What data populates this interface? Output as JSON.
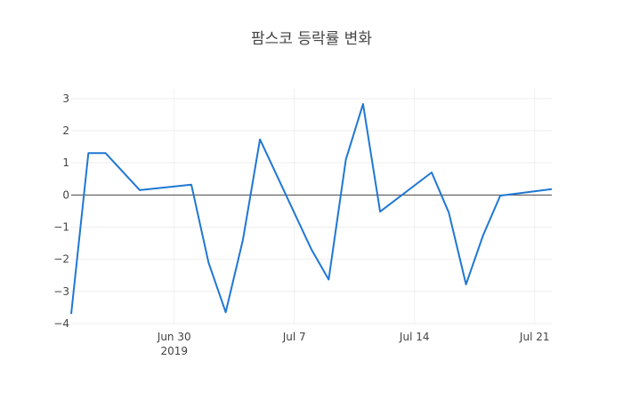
{
  "chart_data": {
    "type": "line",
    "title": "팜스코 등락률 변화",
    "xlabel": "",
    "ylabel": "",
    "x_range": [
      "2019-06-24",
      "2019-07-22"
    ],
    "ylim": [
      -4,
      3.3
    ],
    "grid": true,
    "legend": "none",
    "x_ticks": [
      {
        "date": "2019-06-30",
        "label": "Jun 30",
        "sublabel": "2019"
      },
      {
        "date": "2019-07-07",
        "label": "Jul 7",
        "sublabel": ""
      },
      {
        "date": "2019-07-14",
        "label": "Jul 14",
        "sublabel": ""
      },
      {
        "date": "2019-07-21",
        "label": "Jul 21",
        "sublabel": ""
      }
    ],
    "y_ticks": [
      {
        "value": 3,
        "label": "3"
      },
      {
        "value": 2,
        "label": "2"
      },
      {
        "value": 1,
        "label": "1"
      },
      {
        "value": 0,
        "label": "0"
      },
      {
        "value": -1,
        "label": "−1"
      },
      {
        "value": -2,
        "label": "−2"
      },
      {
        "value": -3,
        "label": "−3"
      },
      {
        "value": -4,
        "label": "−4"
      }
    ],
    "series": [
      {
        "color": "#1f77d4",
        "x": [
          "2019-06-24",
          "2019-06-25",
          "2019-06-26",
          "2019-06-28",
          "2019-07-01",
          "2019-07-02",
          "2019-07-03",
          "2019-07-04",
          "2019-07-05",
          "2019-07-08",
          "2019-07-09",
          "2019-07-10",
          "2019-07-11",
          "2019-07-12",
          "2019-07-15",
          "2019-07-16",
          "2019-07-17",
          "2019-07-18",
          "2019-07-19",
          "2019-07-22"
        ],
        "y": [
          -3.7,
          1.3,
          1.3,
          0.15,
          0.32,
          -2.1,
          -3.65,
          -1.4,
          1.73,
          -1.7,
          -2.63,
          1.1,
          2.83,
          -0.52,
          0.7,
          -0.55,
          -2.78,
          -1.25,
          -0.02,
          0.18
        ]
      }
    ]
  }
}
